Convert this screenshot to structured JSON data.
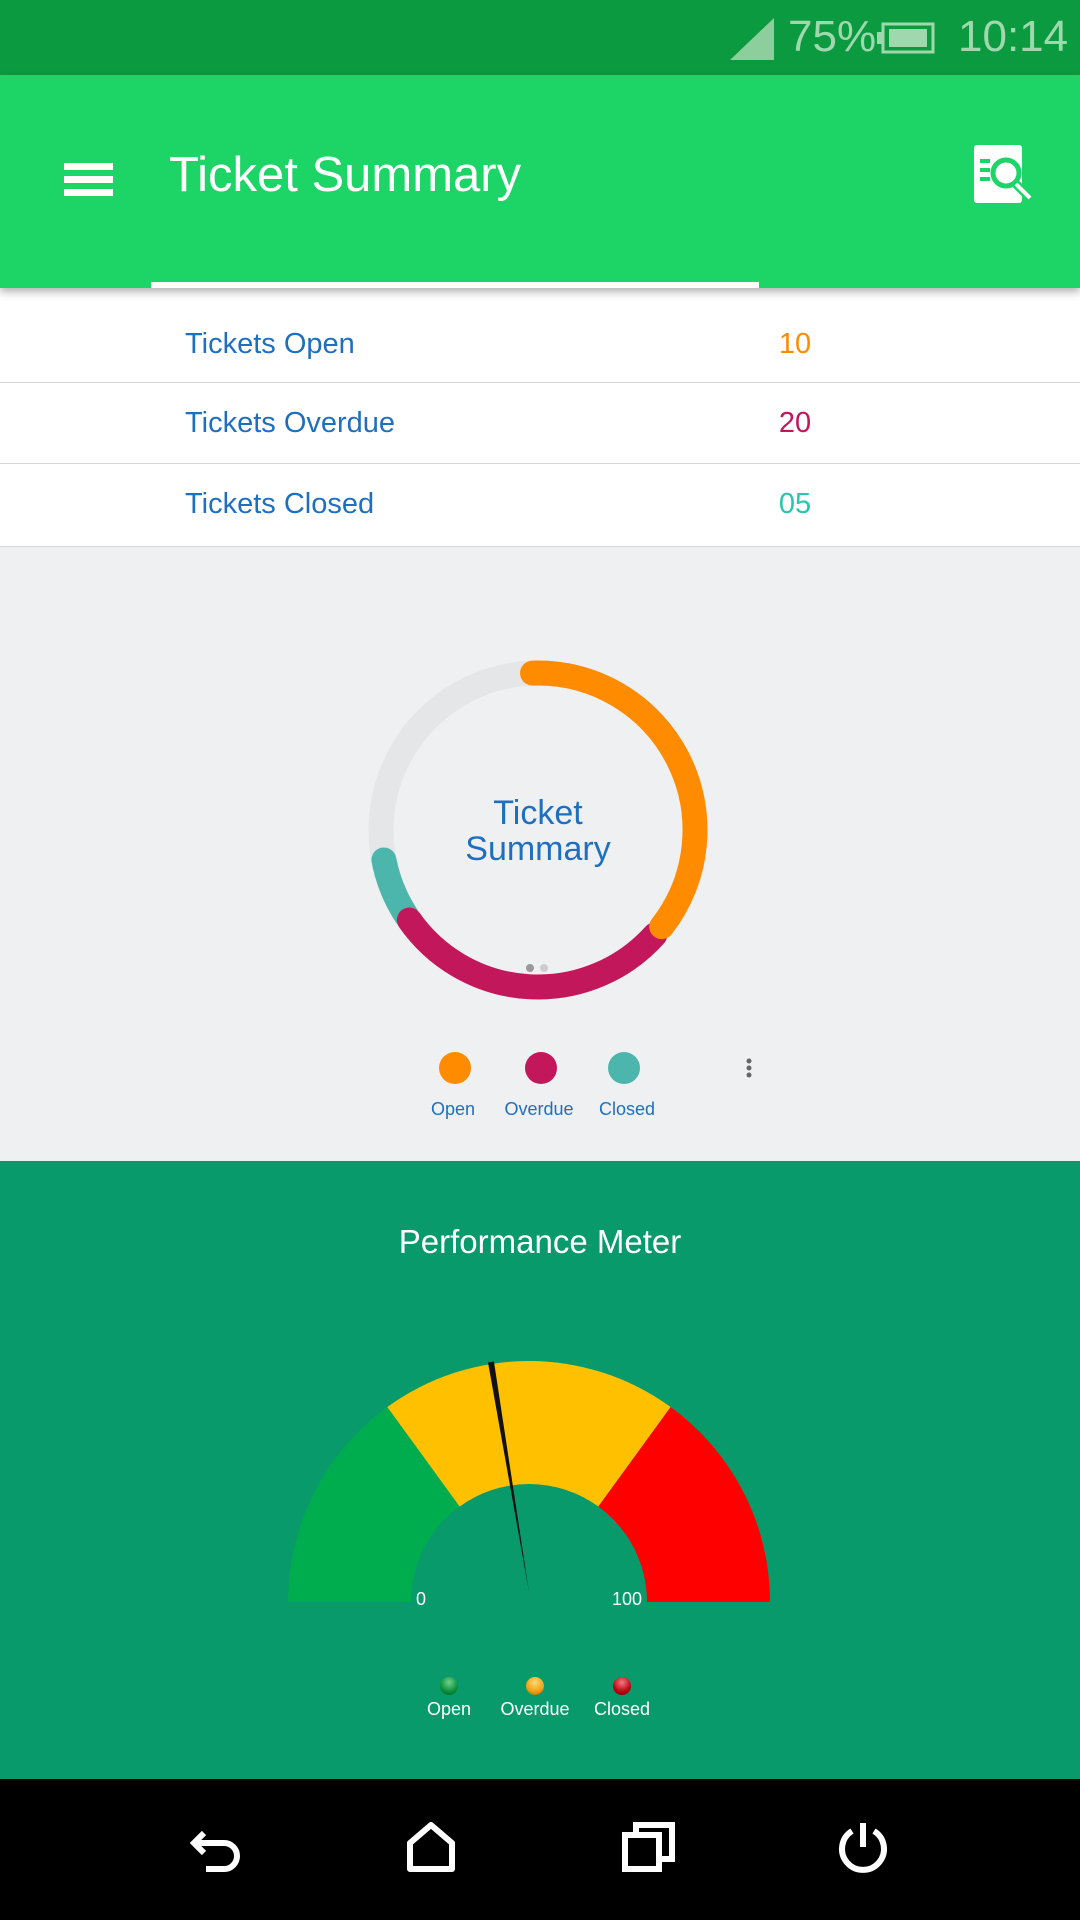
{
  "status_bar": {
    "battery_percent": "75%",
    "time": "10:14",
    "icons": [
      "signal-icon",
      "battery-icon"
    ]
  },
  "app_bar": {
    "title": "Ticket Summary",
    "menu_icon": "hamburger-icon",
    "action_icon": "document-search-icon"
  },
  "summary_rows": [
    {
      "label": "Tickets Open",
      "value": "10",
      "color": "#ff8c00"
    },
    {
      "label": "Tickets Overdue",
      "value": "20",
      "color": "#c2185b"
    },
    {
      "label": "Tickets Closed",
      "value": "05",
      "color": "#26c6b0"
    }
  ],
  "donut": {
    "center_line1": "Ticket",
    "center_line2": "Summary",
    "legend": [
      {
        "label": "Open",
        "color": "#ff8c00"
      },
      {
        "label": "Overdue",
        "color": "#c2185b"
      },
      {
        "label": "Closed",
        "color": "#4db6ac"
      }
    ],
    "page_indicator": {
      "pages": 2,
      "current": 1
    }
  },
  "performance": {
    "title": "Performance Meter",
    "min_label": "0",
    "max_label": "100",
    "needle_value": 45,
    "bands": [
      {
        "from": 0,
        "to": 30,
        "color": "#00ad4e"
      },
      {
        "from": 30,
        "to": 70,
        "color": "#ffc000"
      },
      {
        "from": 70,
        "to": 100,
        "color": "#ff0000"
      }
    ],
    "legend": [
      {
        "label": "Open",
        "color": "#0a8f3a"
      },
      {
        "label": "Overdue",
        "color": "#f0a010"
      },
      {
        "label": "Closed",
        "color": "#c00010"
      }
    ]
  },
  "nav_bar": {
    "icons": [
      "back-icon",
      "home-icon",
      "recents-icon",
      "power-icon"
    ]
  }
}
